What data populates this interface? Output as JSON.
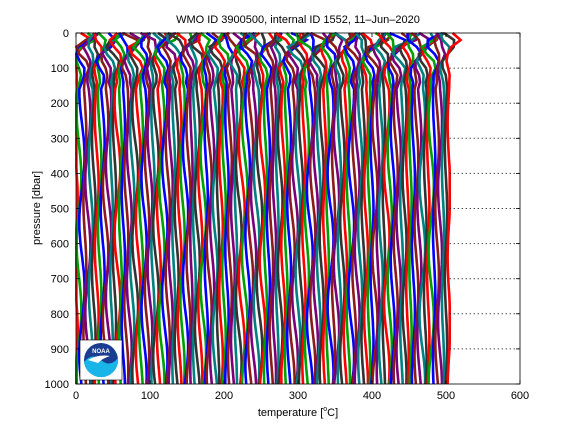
{
  "chart_data": {
    "type": "line",
    "title": "WMO ID 3900500, internal ID 1552, 11–Jun–2020",
    "xlabel": "temperature [°C]",
    "xlabel_prefix": "temperature [",
    "xlabel_degree": "o",
    "xlabel_suffix": "C]",
    "ylabel": "pressure [dbar]",
    "xlim": [
      0,
      600
    ],
    "ylim": [
      0,
      1000
    ],
    "y_reversed": true,
    "xticks": [
      0,
      100,
      200,
      300,
      400,
      500,
      600
    ],
    "yticks": [
      0,
      100,
      200,
      300,
      400,
      500,
      600,
      700,
      800,
      900,
      1000
    ],
    "grid": false,
    "dotted_reference_lines_y": [
      100,
      200,
      300,
      400,
      500,
      600,
      700,
      800,
      900
    ],
    "profile_count": 128,
    "profile_spacing_degC": 4,
    "profile_x_start_degC": 0,
    "surface_peak_x_max": 530,
    "deep_x_max": 505,
    "series_colors": [
      "#ff0000",
      "#00a000",
      "#0000ff",
      "#8b1a1a",
      "#7a007a",
      "#008080",
      "#333333"
    ],
    "logo": {
      "name": "noaa-logo",
      "text": "NOAA",
      "colors": {
        "top": "#1a3d8f",
        "bottom": "#19b4e8",
        "bird": "#ffffff"
      }
    }
  }
}
